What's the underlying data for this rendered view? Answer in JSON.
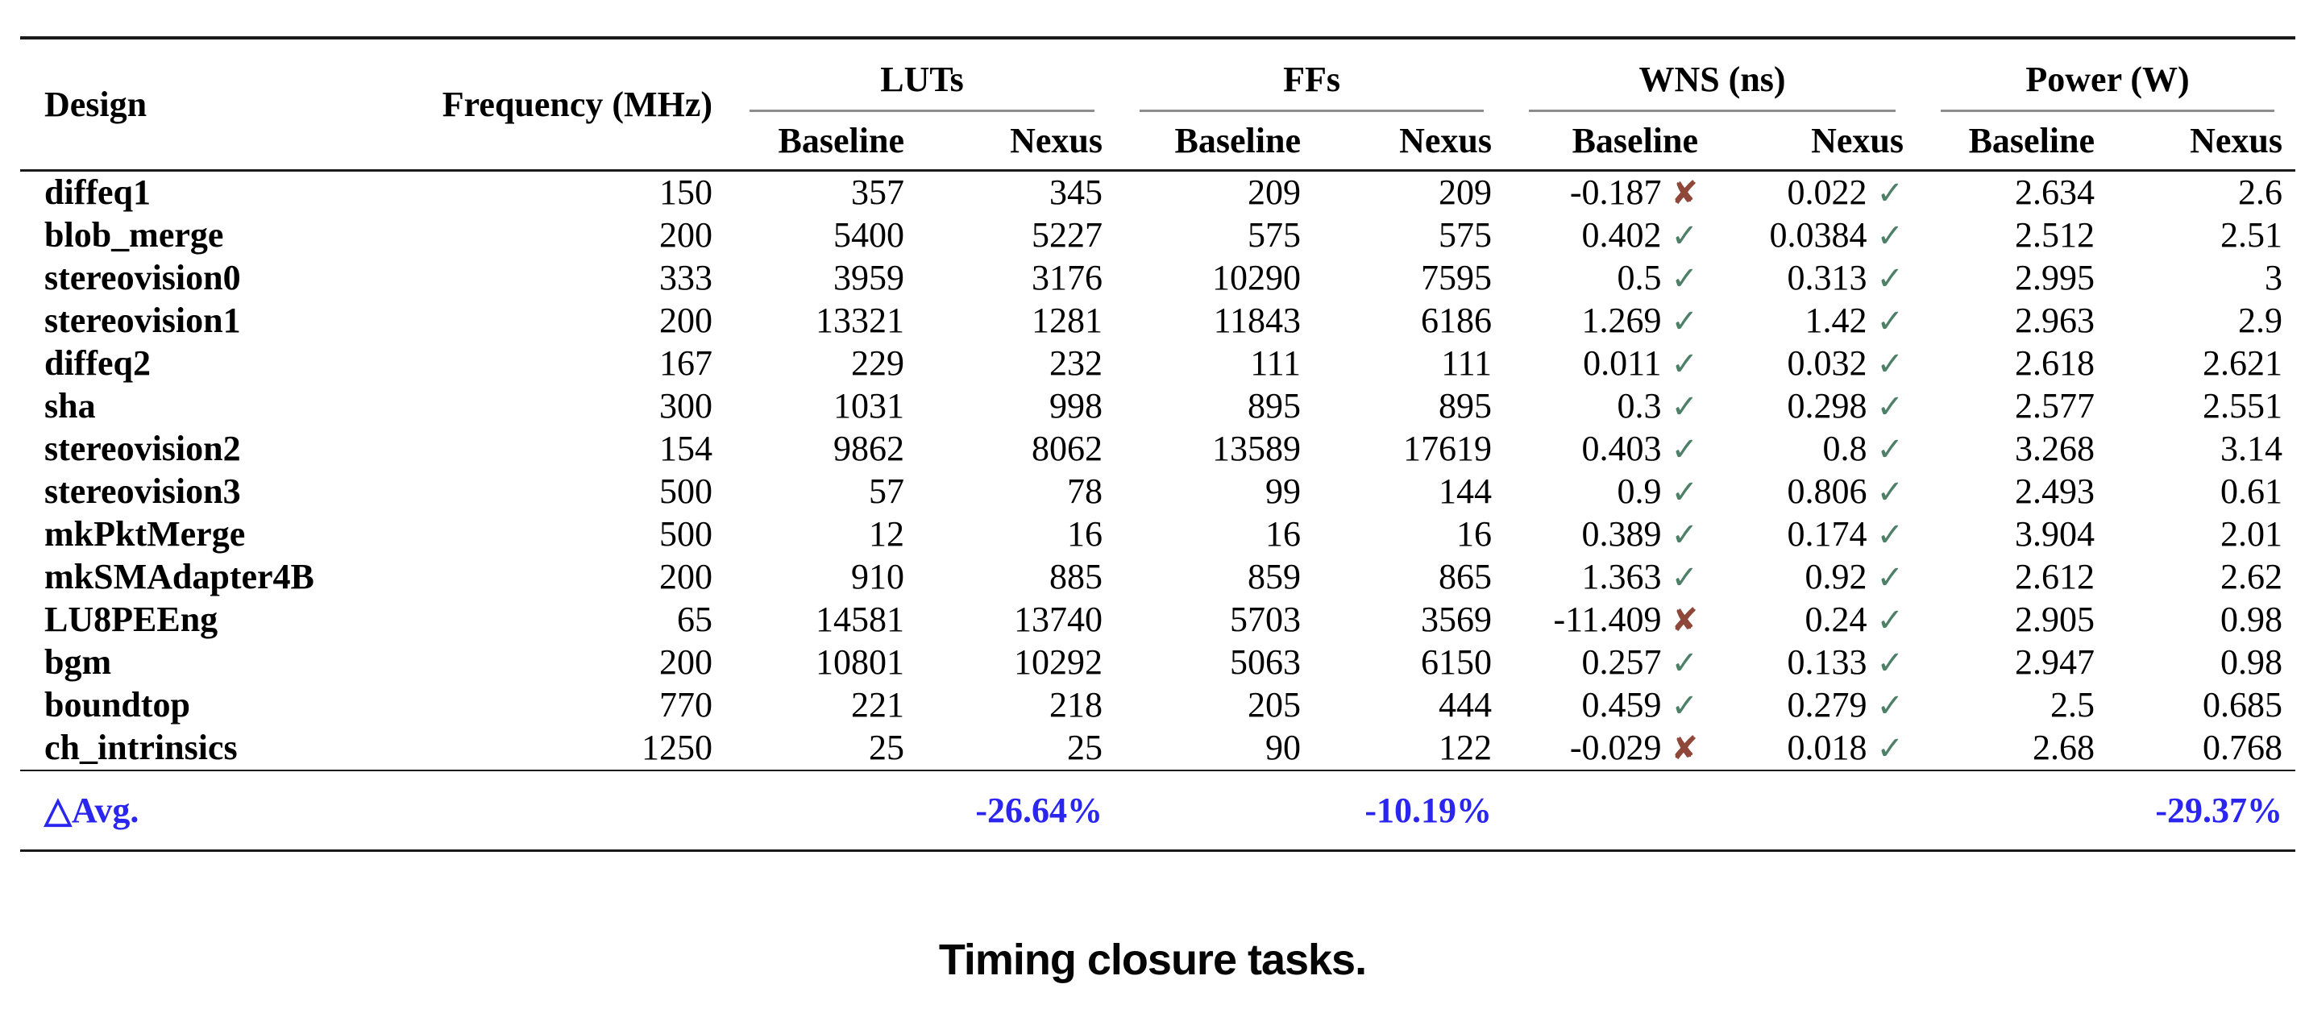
{
  "table": {
    "design_header": "Design",
    "frequency_header": "Frequency (MHz)",
    "groups": [
      {
        "label": "LUTs",
        "sub": [
          "Baseline",
          "Nexus"
        ]
      },
      {
        "label": "FFs",
        "sub": [
          "Baseline",
          "Nexus"
        ]
      },
      {
        "label": "WNS (ns)",
        "sub": [
          "Baseline",
          "Nexus"
        ]
      },
      {
        "label": "Power (W)",
        "sub": [
          "Baseline",
          "Nexus"
        ]
      }
    ],
    "rows": [
      {
        "design": "diffeq1",
        "frequency": "150",
        "luts_baseline": "357",
        "luts_nexus": "345",
        "ffs_baseline": "209",
        "ffs_nexus": "209",
        "wns_baseline": "-0.187",
        "wns_baseline_met": false,
        "wns_nexus": "0.022",
        "wns_nexus_met": true,
        "power_baseline": "2.634",
        "power_nexus": "2.6"
      },
      {
        "design": "blob_merge",
        "frequency": "200",
        "luts_baseline": "5400",
        "luts_nexus": "5227",
        "ffs_baseline": "575",
        "ffs_nexus": "575",
        "wns_baseline": "0.402",
        "wns_baseline_met": true,
        "wns_nexus": "0.0384",
        "wns_nexus_met": true,
        "power_baseline": "2.512",
        "power_nexus": "2.51"
      },
      {
        "design": "stereovision0",
        "frequency": "333",
        "luts_baseline": "3959",
        "luts_nexus": "3176",
        "ffs_baseline": "10290",
        "ffs_nexus": "7595",
        "wns_baseline": "0.5",
        "wns_baseline_met": true,
        "wns_nexus": "0.313",
        "wns_nexus_met": true,
        "power_baseline": "2.995",
        "power_nexus": "3"
      },
      {
        "design": "stereovision1",
        "frequency": "200",
        "luts_baseline": "13321",
        "luts_nexus": "1281",
        "ffs_baseline": "11843",
        "ffs_nexus": "6186",
        "wns_baseline": "1.269",
        "wns_baseline_met": true,
        "wns_nexus": "1.42",
        "wns_nexus_met": true,
        "power_baseline": "2.963",
        "power_nexus": "2.9"
      },
      {
        "design": "diffeq2",
        "frequency": "167",
        "luts_baseline": "229",
        "luts_nexus": "232",
        "ffs_baseline": "111",
        "ffs_nexus": "111",
        "wns_baseline": "0.011",
        "wns_baseline_met": true,
        "wns_nexus": "0.032",
        "wns_nexus_met": true,
        "power_baseline": "2.618",
        "power_nexus": "2.621"
      },
      {
        "design": "sha",
        "frequency": "300",
        "luts_baseline": "1031",
        "luts_nexus": "998",
        "ffs_baseline": "895",
        "ffs_nexus": "895",
        "wns_baseline": "0.3",
        "wns_baseline_met": true,
        "wns_nexus": "0.298",
        "wns_nexus_met": true,
        "power_baseline": "2.577",
        "power_nexus": "2.551"
      },
      {
        "design": "stereovision2",
        "frequency": "154",
        "luts_baseline": "9862",
        "luts_nexus": "8062",
        "ffs_baseline": "13589",
        "ffs_nexus": "17619",
        "wns_baseline": "0.403",
        "wns_baseline_met": true,
        "wns_nexus": "0.8",
        "wns_nexus_met": true,
        "power_baseline": "3.268",
        "power_nexus": "3.14"
      },
      {
        "design": "stereovision3",
        "frequency": "500",
        "luts_baseline": "57",
        "luts_nexus": "78",
        "ffs_baseline": "99",
        "ffs_nexus": "144",
        "wns_baseline": "0.9",
        "wns_baseline_met": true,
        "wns_nexus": "0.806",
        "wns_nexus_met": true,
        "power_baseline": "2.493",
        "power_nexus": "0.61"
      },
      {
        "design": "mkPktMerge",
        "frequency": "500",
        "luts_baseline": "12",
        "luts_nexus": "16",
        "ffs_baseline": "16",
        "ffs_nexus": "16",
        "wns_baseline": "0.389",
        "wns_baseline_met": true,
        "wns_nexus": "0.174",
        "wns_nexus_met": true,
        "power_baseline": "3.904",
        "power_nexus": "2.01"
      },
      {
        "design": "mkSMAdapter4B",
        "frequency": "200",
        "luts_baseline": "910",
        "luts_nexus": "885",
        "ffs_baseline": "859",
        "ffs_nexus": "865",
        "wns_baseline": "1.363",
        "wns_baseline_met": true,
        "wns_nexus": "0.92",
        "wns_nexus_met": true,
        "power_baseline": "2.612",
        "power_nexus": "2.62"
      },
      {
        "design": "LU8PEEng",
        "frequency": "65",
        "luts_baseline": "14581",
        "luts_nexus": "13740",
        "ffs_baseline": "5703",
        "ffs_nexus": "3569",
        "wns_baseline": "-11.409",
        "wns_baseline_met": false,
        "wns_nexus": "0.24",
        "wns_nexus_met": true,
        "power_baseline": "2.905",
        "power_nexus": "0.98"
      },
      {
        "design": "bgm",
        "frequency": "200",
        "luts_baseline": "10801",
        "luts_nexus": "10292",
        "ffs_baseline": "5063",
        "ffs_nexus": "6150",
        "wns_baseline": "0.257",
        "wns_baseline_met": true,
        "wns_nexus": "0.133",
        "wns_nexus_met": true,
        "power_baseline": "2.947",
        "power_nexus": "0.98"
      },
      {
        "design": "boundtop",
        "frequency": "770",
        "luts_baseline": "221",
        "luts_nexus": "218",
        "ffs_baseline": "205",
        "ffs_nexus": "444",
        "wns_baseline": "0.459",
        "wns_baseline_met": true,
        "wns_nexus": "0.279",
        "wns_nexus_met": true,
        "power_baseline": "2.5",
        "power_nexus": "0.685"
      },
      {
        "design": "ch_intrinsics",
        "frequency": "1250",
        "luts_baseline": "25",
        "luts_nexus": "25",
        "ffs_baseline": "90",
        "ffs_nexus": "122",
        "wns_baseline": "-0.029",
        "wns_baseline_met": false,
        "wns_nexus": "0.018",
        "wns_nexus_met": true,
        "power_baseline": "2.68",
        "power_nexus": "0.768"
      }
    ],
    "avg_row": {
      "label": "△Avg.",
      "luts_delta": "-26.64%",
      "ffs_delta": "-10.19%",
      "power_delta": "-29.37%"
    }
  },
  "icons": {
    "pass": "✓",
    "fail": "✘"
  },
  "colors": {
    "pass_green": "#4e8068",
    "fail_red": "#8f4739",
    "accent_blue": "#2b26ef",
    "rule_dark": "#1a1a1a",
    "rule_gray": "#8d8d8d"
  },
  "caption": "Timing closure tasks."
}
